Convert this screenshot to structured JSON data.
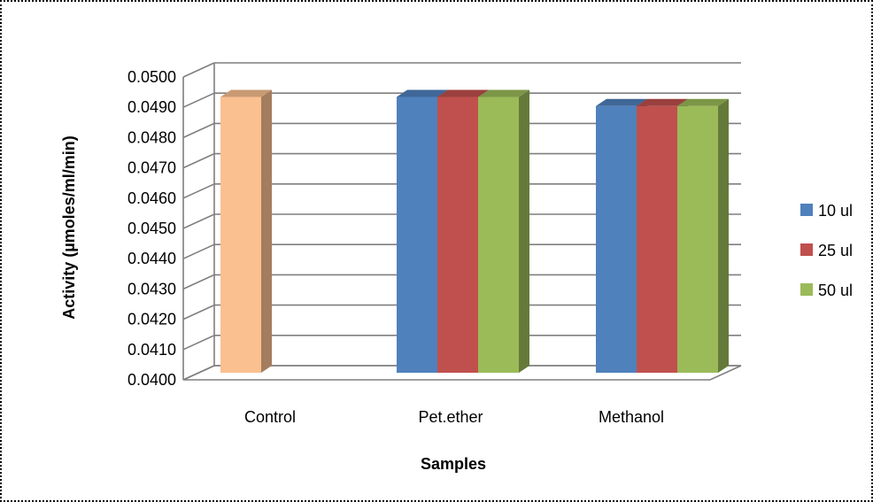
{
  "chart_data": {
    "type": "bar",
    "style": "3d-clustered-column",
    "categories": [
      "Control",
      "Pet.ether",
      "Methanol"
    ],
    "series": [
      {
        "name": "10 ul",
        "color": "#4F81BD",
        "values": [
          null,
          0.0494,
          0.0491
        ]
      },
      {
        "name": "25 ul",
        "color": "#C0504D",
        "values": [
          null,
          0.0494,
          0.0491
        ]
      },
      {
        "name": "50 ul",
        "color": "#9BBB59",
        "values": [
          null,
          0.0494,
          0.0491
        ]
      }
    ],
    "control": {
      "category": "Control",
      "value": 0.0494,
      "color": "#FAC090"
    },
    "xlabel": "Samples",
    "ylabel": "Activity (µmoles/ml/min)",
    "ylim": [
      0.04,
      0.05
    ],
    "yticks": [
      "0.0400",
      "0.0410",
      "0.0420",
      "0.0430",
      "0.0440",
      "0.0450",
      "0.0460",
      "0.0470",
      "0.0480",
      "0.0490",
      "0.0500"
    ],
    "grid": true,
    "legend_position": "right"
  }
}
